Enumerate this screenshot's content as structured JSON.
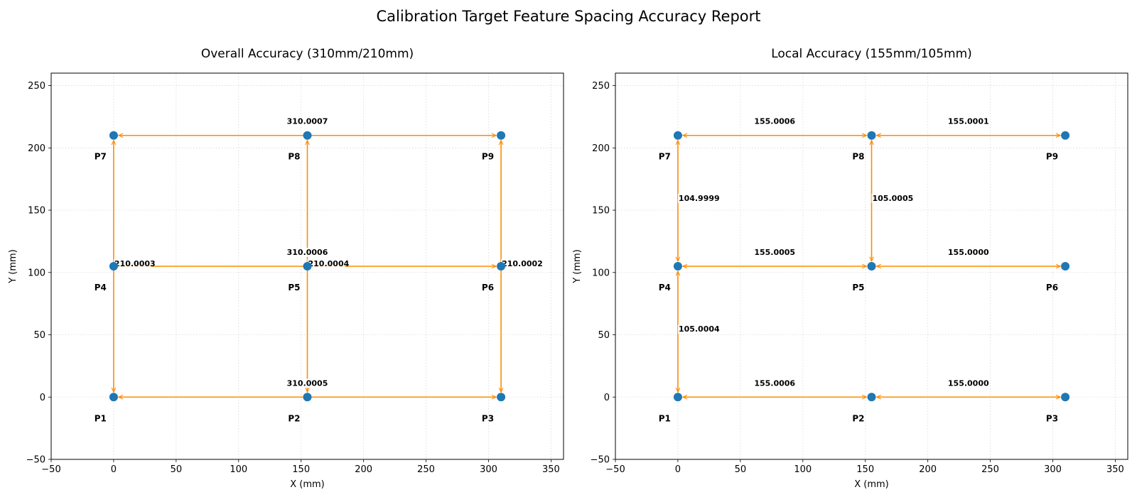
{
  "suptitle": "Calibration Target Feature Spacing Accuracy Report",
  "chart_data": [
    {
      "type": "scatter",
      "title": "Overall Accuracy (310mm/210mm)",
      "xlabel": "X (mm)",
      "ylabel": "Y (mm)",
      "xlim": [
        -50,
        360
      ],
      "ylim": [
        -50,
        260
      ],
      "xticks": [
        -50,
        0,
        50,
        100,
        150,
        200,
        250,
        300,
        350
      ],
      "yticks": [
        -50,
        0,
        50,
        100,
        150,
        200,
        250
      ],
      "grid": true,
      "point_color": "#1f77b4",
      "arrow_color": "#ff8c00",
      "points": [
        {
          "label": "P1",
          "x": 0,
          "y": 0
        },
        {
          "label": "P2",
          "x": 155,
          "y": 0
        },
        {
          "label": "P3",
          "x": 310,
          "y": 0
        },
        {
          "label": "P4",
          "x": 0,
          "y": 105
        },
        {
          "label": "P5",
          "x": 155,
          "y": 105
        },
        {
          "label": "P6",
          "x": 310,
          "y": 105
        },
        {
          "label": "P7",
          "x": 0,
          "y": 210
        },
        {
          "label": "P8",
          "x": 155,
          "y": 210
        },
        {
          "label": "P9",
          "x": 310,
          "y": 210
        }
      ],
      "measurements": [
        {
          "from": [
            0,
            0
          ],
          "to": [
            310,
            0
          ],
          "value": "310.0005",
          "dir": "h"
        },
        {
          "from": [
            0,
            105
          ],
          "to": [
            310,
            105
          ],
          "value": "310.0006",
          "dir": "h"
        },
        {
          "from": [
            0,
            210
          ],
          "to": [
            310,
            210
          ],
          "value": "310.0007",
          "dir": "h"
        },
        {
          "from": [
            0,
            0
          ],
          "to": [
            0,
            210
          ],
          "value": "210.0003",
          "dir": "v"
        },
        {
          "from": [
            155,
            0
          ],
          "to": [
            155,
            210
          ],
          "value": "210.0004",
          "dir": "v"
        },
        {
          "from": [
            310,
            0
          ],
          "to": [
            310,
            210
          ],
          "value": "210.0002",
          "dir": "v"
        }
      ]
    },
    {
      "type": "scatter",
      "title": "Local Accuracy (155mm/105mm)",
      "xlabel": "X (mm)",
      "ylabel": "Y (mm)",
      "xlim": [
        -50,
        360
      ],
      "ylim": [
        -50,
        260
      ],
      "xticks": [
        -50,
        0,
        50,
        100,
        150,
        200,
        250,
        300,
        350
      ],
      "yticks": [
        -50,
        0,
        50,
        100,
        150,
        200,
        250
      ],
      "grid": true,
      "point_color": "#1f77b4",
      "arrow_color": "#ff8c00",
      "points": [
        {
          "label": "P1",
          "x": 0,
          "y": 0
        },
        {
          "label": "P2",
          "x": 155,
          "y": 0
        },
        {
          "label": "P3",
          "x": 310,
          "y": 0
        },
        {
          "label": "P4",
          "x": 0,
          "y": 105
        },
        {
          "label": "P5",
          "x": 155,
          "y": 105
        },
        {
          "label": "P6",
          "x": 310,
          "y": 105
        },
        {
          "label": "P7",
          "x": 0,
          "y": 210
        },
        {
          "label": "P8",
          "x": 155,
          "y": 210
        },
        {
          "label": "P9",
          "x": 310,
          "y": 210
        }
      ],
      "measurements": [
        {
          "from": [
            0,
            0
          ],
          "to": [
            155,
            0
          ],
          "value": "155.0006",
          "dir": "h"
        },
        {
          "from": [
            155,
            0
          ],
          "to": [
            310,
            0
          ],
          "value": "155.0000",
          "dir": "h"
        },
        {
          "from": [
            0,
            105
          ],
          "to": [
            155,
            105
          ],
          "value": "155.0005",
          "dir": "h"
        },
        {
          "from": [
            155,
            105
          ],
          "to": [
            310,
            105
          ],
          "value": "155.0000",
          "dir": "h"
        },
        {
          "from": [
            0,
            210
          ],
          "to": [
            155,
            210
          ],
          "value": "155.0006",
          "dir": "h"
        },
        {
          "from": [
            155,
            210
          ],
          "to": [
            310,
            210
          ],
          "value": "155.0001",
          "dir": "h"
        },
        {
          "from": [
            0,
            0
          ],
          "to": [
            0,
            105
          ],
          "value": "105.0004",
          "dir": "v"
        },
        {
          "from": [
            0,
            105
          ],
          "to": [
            0,
            210
          ],
          "value": "104.9999",
          "dir": "v"
        },
        {
          "from": [
            155,
            105
          ],
          "to": [
            155,
            210
          ],
          "value": "105.0005",
          "dir": "v"
        }
      ]
    }
  ]
}
